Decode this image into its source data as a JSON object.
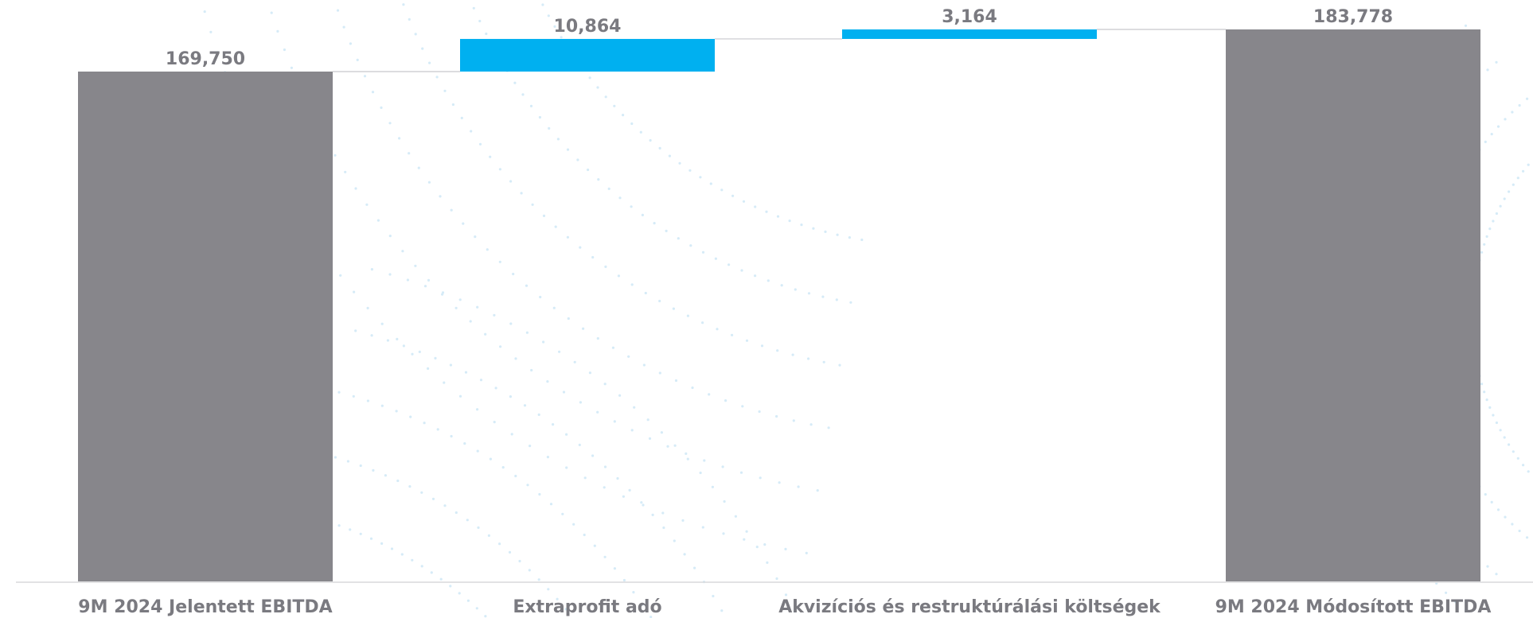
{
  "chart_data": {
    "type": "waterfall",
    "categories": [
      "9M 2024 Jelentett EBITDA",
      "Extraprofit adó",
      "Akvizíciós és restruktúrálási költségek",
      "9M 2024 Módosított EBITDA"
    ],
    "values": [
      169750,
      10864,
      3164,
      183778
    ],
    "value_labels": [
      "169,750",
      "10,864",
      "3,164",
      "183,778"
    ],
    "kinds": [
      "total",
      "delta",
      "delta",
      "total"
    ],
    "ylim": [
      0,
      183778
    ],
    "grid": false,
    "colors": {
      "total": "#87868b",
      "delta": "#00b0f0",
      "connector": "#c8c8cc",
      "axis": "#d9d9dc",
      "text": "#7a7a80"
    }
  }
}
